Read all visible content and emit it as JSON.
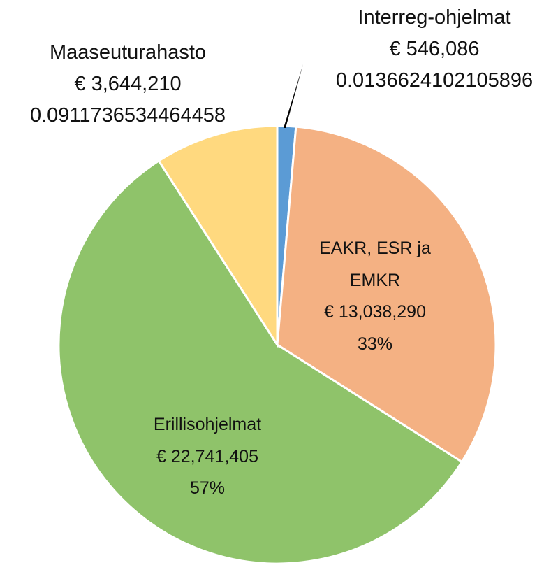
{
  "chart_data": {
    "type": "pie",
    "categories": [
      "Interreg-ohjelmat",
      "EAKR, ESR ja EMKR",
      "Erillisohjelmat",
      "Maaseuturahasto"
    ],
    "values": [
      546086,
      13038290,
      22741405,
      3644210
    ],
    "value_labels": [
      "€ 546,086",
      "€ 13,038,290",
      "€ 22,741,405",
      "€ 3,644,210"
    ],
    "percent_labels": [
      "0.0136624102105896",
      "33%",
      "57%",
      "0.0911736534464458"
    ],
    "colors": [
      "#5b9bd5",
      "#f4b183",
      "#8fc36a",
      "#ffd97f"
    ]
  }
}
